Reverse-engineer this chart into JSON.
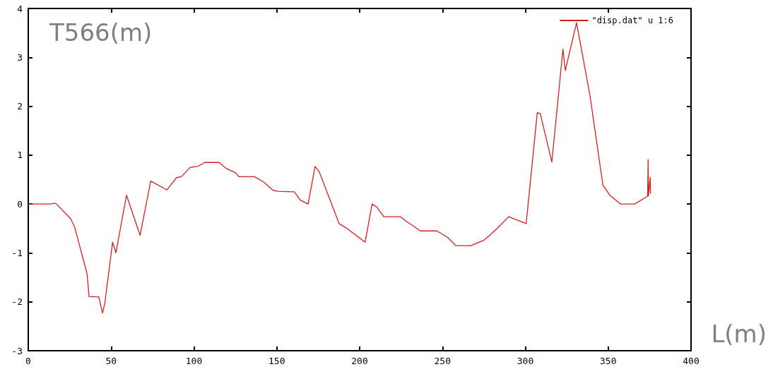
{
  "chart_data": {
    "type": "line",
    "xlabel": "L(m)",
    "ylabel": "T566(m)",
    "xlim": [
      0,
      400
    ],
    "xticks": [
      0,
      50,
      100,
      150,
      200,
      250,
      300,
      350,
      400
    ],
    "ylim": [
      -3,
      4
    ],
    "yticks": [
      -3,
      -2,
      -1,
      0,
      1,
      2,
      3,
      4
    ],
    "grid": false,
    "legend": "top right",
    "marker": "none",
    "line_style": "solid",
    "series": [
      {
        "name": "\"disp.dat\" u 1:6",
        "color": "#d42020",
        "x": [
          0,
          13.5,
          15.6,
          17,
          25.6,
          28,
          35.5,
          36.7,
          42.6,
          44.8,
          46.2,
          50.9,
          51.9,
          52.9,
          59.3,
          67.5,
          73.9,
          83.6,
          89.5,
          92.4,
          97.7,
          102.3,
          106.6,
          115.1,
          119.4,
          125.1,
          127.1,
          136.5,
          142.1,
          147.8,
          150.7,
          160.6,
          164.2,
          168.9,
          173.1,
          175.6,
          187.6,
          191.9,
          203.3,
          207.5,
          210.3,
          214.6,
          224.6,
          228.9,
          236.7,
          246.6,
          253,
          258,
          267.2,
          275,
          281.4,
          290,
          300.5,
          307.2,
          309,
          316,
          322.7,
          324.1,
          330.9,
          339,
          346.8,
          351,
          357.5,
          366,
          373.8,
          374.1,
          374.3,
          375.4,
          375.5
        ],
        "values": [
          0,
          0,
          0.02,
          0,
          -0.3,
          -0.47,
          -1.43,
          -1.89,
          -1.9,
          -2.23,
          -2.03,
          -0.78,
          -0.88,
          -1.0,
          0.18,
          -0.64,
          0.47,
          0.29,
          0.54,
          0.56,
          0.75,
          0.77,
          0.85,
          0.85,
          0.73,
          0.64,
          0.56,
          0.56,
          0.45,
          0.28,
          0.26,
          0.25,
          0.08,
          0.0,
          0.77,
          0.66,
          -0.4,
          -0.49,
          -0.78,
          0.0,
          -0.06,
          -0.26,
          -0.26,
          -0.37,
          -0.55,
          -0.55,
          -0.68,
          -0.85,
          -0.85,
          -0.74,
          -0.55,
          -0.26,
          -0.4,
          1.87,
          1.85,
          0.86,
          3.17,
          2.73,
          3.71,
          2.22,
          0.39,
          0.18,
          0,
          0,
          0.16,
          0.91,
          0.17,
          0.55,
          0.22
        ]
      }
    ]
  }
}
